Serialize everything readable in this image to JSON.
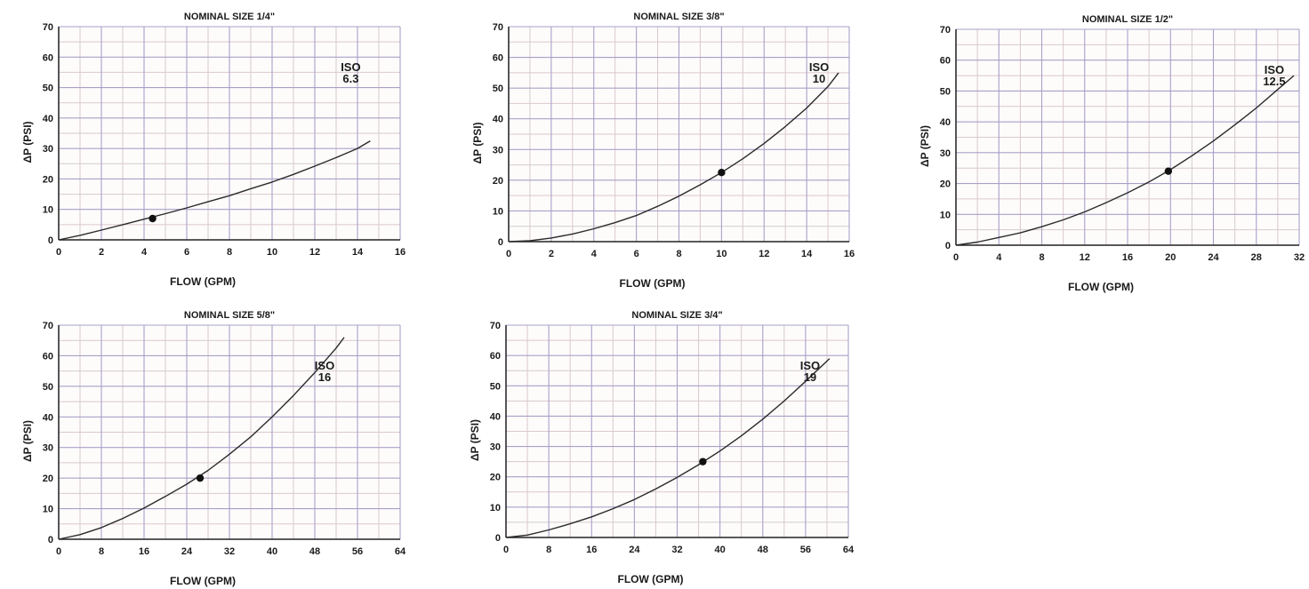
{
  "chart_data": [
    {
      "type": "line",
      "title": "NOMINAL SIZE 1/4\"",
      "xlabel": "FLOW (GPM)",
      "ylabel": "ΔP (PSI)",
      "xlim": [
        0,
        16
      ],
      "ylim": [
        0,
        70
      ],
      "xticks": [
        0,
        2,
        4,
        6,
        8,
        10,
        12,
        14,
        16
      ],
      "yticks": [
        0,
        10,
        20,
        30,
        40,
        50,
        60,
        70
      ],
      "grid": true,
      "curve_label": [
        "ISO",
        "6.3"
      ],
      "series": [
        {
          "x": [
            0,
            1,
            2,
            3,
            4,
            5,
            6,
            7,
            8,
            9,
            10,
            11,
            12,
            13,
            14,
            14.6
          ],
          "y": [
            0,
            1.5,
            3.2,
            5.0,
            6.8,
            8.6,
            10.5,
            12.5,
            14.5,
            16.8,
            19.0,
            21.5,
            24.2,
            27.0,
            30.0,
            32.5
          ]
        }
      ],
      "marker": {
        "x": 4.4,
        "y": 7
      }
    },
    {
      "type": "line",
      "title": "NOMINAL SIZE 3/8\"",
      "xlabel": "FLOW (GPM)",
      "ylabel": "ΔP (PSI)",
      "xlim": [
        0,
        16
      ],
      "ylim": [
        0,
        70
      ],
      "xticks": [
        0,
        2,
        4,
        6,
        8,
        10,
        12,
        14,
        16
      ],
      "yticks": [
        0,
        10,
        20,
        30,
        40,
        50,
        60,
        70
      ],
      "grid": true,
      "curve_label": [
        "ISO",
        "10"
      ],
      "series": [
        {
          "x": [
            0,
            1,
            2,
            3,
            4,
            5,
            6,
            7,
            8,
            9,
            10,
            11,
            12,
            13,
            14,
            15,
            15.5
          ],
          "y": [
            0,
            0.3,
            1.2,
            2.5,
            4.2,
            6.2,
            8.5,
            11.5,
            14.8,
            18.5,
            22.5,
            27.0,
            32.0,
            37.5,
            43.5,
            50.5,
            55.0
          ]
        }
      ],
      "marker": {
        "x": 10,
        "y": 22.5
      }
    },
    {
      "type": "line",
      "title": "NOMINAL SIZE 1/2\"",
      "xlabel": "FLOW (GPM)",
      "ylabel": "ΔP (PSI)",
      "xlim": [
        0,
        32
      ],
      "ylim": [
        0,
        70
      ],
      "xticks": [
        0,
        4,
        8,
        12,
        16,
        20,
        24,
        28,
        32
      ],
      "yticks": [
        0,
        10,
        20,
        30,
        40,
        50,
        60,
        70
      ],
      "grid": true,
      "curve_label": [
        "ISO",
        "12.5"
      ],
      "series": [
        {
          "x": [
            0,
            2,
            4,
            6,
            8,
            10,
            12,
            14,
            16,
            18,
            20,
            22,
            24,
            26,
            28,
            30,
            31.5
          ],
          "y": [
            0,
            1.0,
            2.5,
            4.0,
            6.0,
            8.2,
            10.8,
            13.8,
            17.0,
            20.5,
            24.5,
            29.0,
            33.8,
            39.0,
            44.5,
            50.5,
            55.0
          ]
        }
      ],
      "marker": {
        "x": 19.8,
        "y": 24
      }
    },
    {
      "type": "line",
      "title": "NOMINAL SIZE 5/8\"",
      "xlabel": "FLOW (GPM)",
      "ylabel": "ΔP (PSI)",
      "xlim": [
        0,
        64
      ],
      "ylim": [
        0,
        70
      ],
      "xticks": [
        0,
        8,
        16,
        24,
        32,
        40,
        48,
        56,
        64
      ],
      "yticks": [
        0,
        10,
        20,
        30,
        40,
        50,
        60,
        70
      ],
      "grid": true,
      "curve_label": [
        "ISO",
        "16"
      ],
      "series": [
        {
          "x": [
            0,
            4,
            8,
            12,
            16,
            20,
            24,
            28,
            32,
            36,
            40,
            44,
            48,
            52,
            53.5
          ],
          "y": [
            0,
            1.5,
            3.8,
            6.8,
            10.2,
            14.0,
            18.0,
            22.5,
            27.8,
            33.5,
            40.0,
            47.0,
            54.5,
            62.5,
            66.0
          ]
        }
      ],
      "marker": {
        "x": 26.5,
        "y": 20
      }
    },
    {
      "type": "line",
      "title": "NOMINAL SIZE 3/4\"",
      "xlabel": "FLOW (GPM)",
      "ylabel": "ΔP (PSI)",
      "xlim": [
        0,
        64
      ],
      "ylim": [
        0,
        70
      ],
      "xticks": [
        0,
        8,
        16,
        24,
        32,
        40,
        48,
        56,
        64
      ],
      "yticks": [
        0,
        10,
        20,
        30,
        40,
        50,
        60,
        70
      ],
      "grid": true,
      "curve_label": [
        "ISO",
        "19"
      ],
      "series": [
        {
          "x": [
            0,
            4,
            8,
            12,
            16,
            20,
            24,
            28,
            32,
            36,
            40,
            44,
            48,
            52,
            56,
            60.5
          ],
          "y": [
            0,
            0.8,
            2.5,
            4.5,
            6.8,
            9.5,
            12.5,
            16.0,
            19.8,
            24.0,
            28.5,
            33.5,
            39.0,
            45.0,
            51.5,
            59.0
          ]
        }
      ],
      "marker": {
        "x": 36.8,
        "y": 25
      }
    }
  ]
}
